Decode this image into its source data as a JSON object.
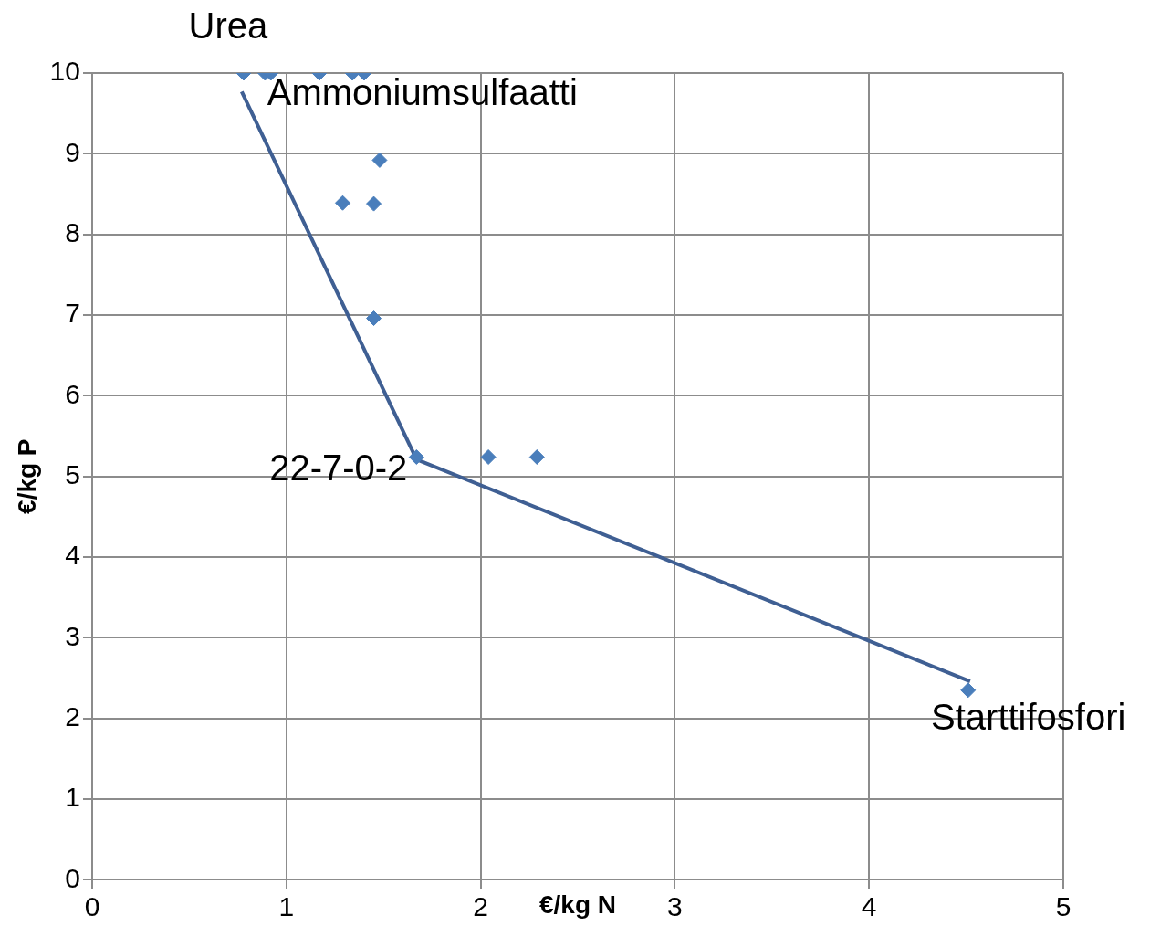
{
  "chart_data": {
    "type": "scatter",
    "xlabel": "€/kg N",
    "ylabel": "€/kg P",
    "xlim": [
      0,
      5
    ],
    "xticks": [
      0,
      1,
      2,
      3,
      4,
      5
    ],
    "ylim": [
      0,
      10
    ],
    "yticks": [
      0,
      1,
      2,
      3,
      4,
      5,
      6,
      7,
      8,
      9,
      10
    ],
    "grid": true,
    "legend": false,
    "marker": "diamond",
    "series": [
      {
        "color": "#4a7ebb",
        "x": [
          0.78,
          0.89,
          0.92,
          1.17,
          1.34,
          1.4,
          1.48,
          1.29,
          1.45,
          1.45,
          1.67,
          2.04,
          2.29,
          4.51
        ],
        "values": [
          10,
          10,
          10,
          10,
          10,
          10,
          8.92,
          8.39,
          8.38,
          6.96,
          5.24,
          5.24,
          5.24,
          2.35
        ]
      },
      {
        "type": "line",
        "color": "#3f5f93",
        "marker": "none",
        "x": [
          0.77,
          1.67,
          4.52
        ],
        "values": [
          9.77,
          5.21,
          2.46
        ]
      }
    ],
    "annotations": [
      {
        "text": "Urea",
        "x": 0.78,
        "y": 10
      },
      {
        "text": "Ammoniumsulfaatti",
        "x": 0.92,
        "y": 10
      },
      {
        "text": "22-7-0-2",
        "x": 1.67,
        "y": 5.24
      },
      {
        "text": "Starttifosfori",
        "x": 4.51,
        "y": 2.35
      }
    ]
  }
}
